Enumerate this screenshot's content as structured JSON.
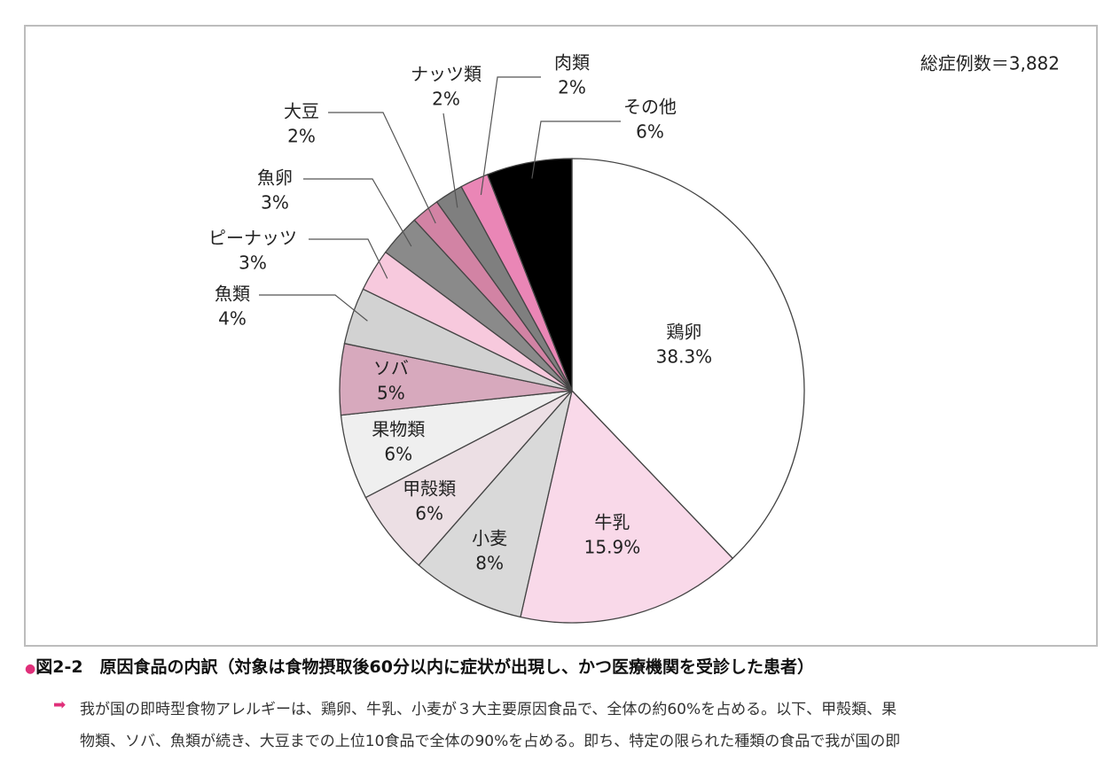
{
  "chart_data": {
    "type": "pie",
    "annotation": "総症例数＝3,882",
    "categories": [
      "鶏卵",
      "牛乳",
      "小麦",
      "甲殻類",
      "果物類",
      "ソバ",
      "魚類",
      "ピーナッツ",
      "魚卵",
      "大豆",
      "ナッツ類",
      "肉類",
      "その他"
    ],
    "values": [
      38.3,
      15.9,
      8,
      6,
      6,
      5,
      4,
      3,
      3,
      2,
      2,
      2,
      6
    ],
    "value_labels": [
      "38.3%",
      "15.9%",
      "8%",
      "6%",
      "6%",
      "5%",
      "4%",
      "3%",
      "3%",
      "2%",
      "2%",
      "2%",
      "6%"
    ],
    "colors": [
      "#ffffff",
      "#f9d9e9",
      "#d9d9d9",
      "#ecdfe4",
      "#efefef",
      "#d7a9bd",
      "#d2d2d2",
      "#f7c9dd",
      "#8a8a8a",
      "#d283a4",
      "#7f7f7f",
      "#ea86b6",
      "#000000"
    ]
  },
  "caption": "図2-2　原因食品の内訳（対象は食物摂取後60分以内に症状が出現し、かつ医療機関を受診した患者）",
  "body": [
    "我が国の即時型食物アレルギーは、鶏卵、牛乳、小麦が３大主要原因食品で、全体の約60%を占める。以下、甲殻類、果",
    "物類、ソバ、魚類が続き、大豆までの上位10食品で全体の90%を占める。即ち、特定の限られた種類の食品で我が国の即"
  ]
}
